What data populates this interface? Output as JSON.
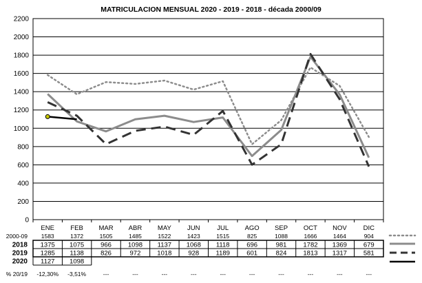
{
  "chart_data": {
    "type": "line",
    "title": "MATRICULACION MENSUAL  2020 - 2019 - 2018 - década 2000/09",
    "categories": [
      "ENE",
      "FEB",
      "MAR",
      "ABR",
      "MAY",
      "JUN",
      "JUL",
      "AGO",
      "SEP",
      "OCT",
      "NOV",
      "DIC"
    ],
    "ylim": [
      0,
      2200
    ],
    "yticks": [
      "0",
      "200",
      "400",
      "600",
      "800",
      "1000",
      "1200",
      "1400",
      "1600",
      "1800",
      "2000",
      "2200"
    ],
    "grid": true,
    "series": [
      {
        "name": "2000-09",
        "values": [
          1583,
          1372,
          1505,
          1485,
          1522,
          1423,
          1515,
          825,
          1088,
          1666,
          1464,
          904
        ],
        "labels": [
          "1583",
          "1372",
          "1505",
          "1485",
          "1522",
          "1423",
          "1515",
          "825",
          "1088",
          "1666",
          "1464",
          "904"
        ],
        "style": "dotted",
        "color": "#8c8c8c"
      },
      {
        "name": "2018",
        "values": [
          1375,
          1075,
          966,
          1098,
          1137,
          1068,
          1118,
          696,
          981,
          1782,
          1369,
          679
        ],
        "labels": [
          "1375",
          "1075",
          "966",
          "1098",
          "1137",
          "1068",
          "1118",
          "696",
          "981",
          "1782",
          "1369",
          "679"
        ],
        "style": "solid",
        "color": "#8c8c8c"
      },
      {
        "name": "2019",
        "values": [
          1285,
          1138,
          826,
          972,
          1018,
          928,
          1189,
          601,
          824,
          1813,
          1317,
          581
        ],
        "labels": [
          "1285",
          "1138",
          "826",
          "972",
          "1018",
          "928",
          "1189",
          "601",
          "824",
          "1813",
          "1317",
          "581"
        ],
        "style": "dashed",
        "color": "#333333"
      },
      {
        "name": "2020",
        "values": [
          1127,
          1098,
          null,
          null,
          null,
          null,
          null,
          null,
          null,
          null,
          null,
          null
        ],
        "labels": [
          "1127",
          "1098",
          "",
          "",
          "",
          "",
          "",
          "",
          "",
          "",
          "",
          ""
        ],
        "style": "solid",
        "color": "#000000"
      }
    ],
    "pct_row": {
      "name": "% 20/19",
      "values": [
        "-12,30%",
        "-3,51%",
        "---",
        "---",
        "---",
        "---",
        "---",
        "---",
        "---",
        "---",
        "---",
        "---"
      ]
    }
  }
}
